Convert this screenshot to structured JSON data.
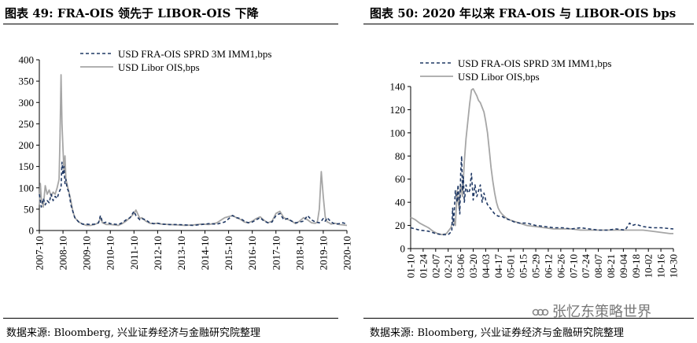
{
  "left": {
    "title": "图表 49:  FRA-OIS 领先于 LIBOR-OIS 下降",
    "source": "数据来源:  Bloomberg,  兴业证券经济与金融研究院整理"
  },
  "right": {
    "title": "图表 50: 2020 年以来 FRA-OIS 与 LIBOR-OIS bps",
    "source": "数据来源:  Bloomberg,  兴业证券经济与金融研究院整理"
  },
  "watermark": "张忆东策略世界",
  "colors": {
    "fra": "#1f3864",
    "libor": "#a6a6a6"
  },
  "chart_data": [
    {
      "type": "line",
      "title": "FRA-OIS 领先于 LIBOR-OIS 下降",
      "x_unit": "month index since 2007-10",
      "xlim": [
        0,
        156
      ],
      "ylim": [
        0,
        400
      ],
      "yticks": [
        0,
        50,
        100,
        150,
        200,
        250,
        300,
        350,
        400
      ],
      "xtick_labels": [
        "2007-10",
        "2008-10",
        "2009-10",
        "2010-10",
        "2011-10",
        "2012-10",
        "2013-10",
        "2014-10",
        "2015-10",
        "2016-10",
        "2017-10",
        "2018-10",
        "2019-10",
        "2020-10"
      ],
      "legend": [
        "USD FRA-OIS SPRD 3M IMM1,bps",
        "USD Libor OIS,bps"
      ],
      "series": [
        {
          "name": "USD FRA-OIS SPRD 3M IMM1,bps",
          "style": "dashed",
          "x": [
            0,
            1,
            2,
            3,
            4,
            5,
            6,
            7,
            8,
            9,
            10,
            11,
            11.5,
            12,
            12.5,
            13,
            13.5,
            14,
            15,
            16,
            17,
            18,
            20,
            22,
            24,
            26,
            28,
            30,
            31,
            32,
            33,
            34,
            36,
            38,
            40,
            42,
            44,
            46,
            48,
            49,
            50,
            51,
            52,
            54,
            56,
            58,
            60,
            62,
            66,
            70,
            74,
            78,
            82,
            86,
            90,
            94,
            98,
            100,
            102,
            104,
            106,
            108,
            110,
            112,
            114,
            116,
            118,
            120,
            122,
            124,
            126,
            128,
            130,
            132,
            134,
            136,
            138,
            140,
            142,
            143,
            144,
            145,
            146,
            148,
            150,
            152,
            154,
            156
          ],
          "y": [
            85,
            55,
            75,
            60,
            70,
            65,
            85,
            70,
            80,
            75,
            90,
            100,
            160,
            130,
            150,
            110,
            120,
            100,
            90,
            60,
            45,
            30,
            20,
            15,
            15,
            14,
            15,
            18,
            35,
            20,
            18,
            20,
            16,
            15,
            14,
            18,
            25,
            30,
            45,
            35,
            30,
            25,
            28,
            25,
            18,
            16,
            17,
            15,
            14,
            14,
            13,
            12,
            14,
            16,
            15,
            20,
            35,
            30,
            28,
            22,
            18,
            20,
            25,
            30,
            22,
            18,
            20,
            35,
            40,
            25,
            28,
            22,
            18,
            20,
            22,
            35,
            25,
            20,
            18,
            22,
            28,
            22,
            30,
            20,
            15,
            16,
            18,
            15
          ]
        },
        {
          "name": "USD Libor OIS,bps",
          "style": "solid",
          "x": [
            0,
            0.5,
            1,
            2,
            3,
            4,
            5,
            6,
            7,
            8,
            9,
            10,
            10.5,
            11,
            11.5,
            12,
            12.5,
            13,
            13.5,
            14,
            14.5,
            15,
            16,
            17,
            18,
            20,
            22,
            24,
            26,
            28,
            30,
            31,
            32,
            34,
            36,
            38,
            40,
            42,
            44,
            46,
            48,
            49,
            50,
            51,
            52,
            54,
            56,
            58,
            60,
            62,
            66,
            70,
            74,
            78,
            82,
            86,
            90,
            94,
            98,
            100,
            102,
            104,
            106,
            108,
            110,
            112,
            114,
            116,
            118,
            120,
            122,
            124,
            126,
            128,
            130,
            132,
            134,
            136,
            138,
            140,
            141,
            142,
            143,
            144,
            145,
            146,
            147,
            148,
            150,
            152,
            154,
            156
          ],
          "y": [
            60,
            110,
            75,
            55,
            105,
            85,
            95,
            80,
            90,
            85,
            100,
            120,
            220,
            365,
            250,
            190,
            140,
            175,
            120,
            110,
            100,
            90,
            70,
            45,
            30,
            20,
            15,
            12,
            12,
            14,
            18,
            30,
            18,
            14,
            14,
            13,
            12,
            16,
            22,
            30,
            40,
            48,
            38,
            28,
            30,
            22,
            17,
            16,
            17,
            15,
            14,
            13,
            12,
            13,
            15,
            14,
            18,
            30,
            35,
            30,
            26,
            20,
            18,
            22,
            28,
            32,
            24,
            18,
            22,
            40,
            45,
            30,
            26,
            22,
            16,
            22,
            30,
            25,
            18,
            17,
            20,
            50,
            138,
            80,
            32,
            20,
            18,
            15,
            17,
            14,
            13,
            12
          ]
        }
      ]
    },
    {
      "type": "line",
      "title": "2020 年以来 FRA-OIS 与 LIBOR-OIS bps",
      "x_unit": "day of 2020",
      "xlim": [
        10,
        304
      ],
      "ylim": [
        0,
        140
      ],
      "yticks": [
        0,
        20,
        40,
        60,
        80,
        100,
        120,
        140
      ],
      "xtick_labels": [
        "01-10",
        "01-24",
        "02-07",
        "02-21",
        "03-06",
        "03-20",
        "04-03",
        "04-17",
        "05-01",
        "05-15",
        "05-29",
        "06-12",
        "06-26",
        "07-10",
        "07-24",
        "08-07",
        "08-21",
        "09-04",
        "09-18",
        "10-02",
        "10-16",
        "10-30"
      ],
      "legend": [
        "USD FRA-OIS SPRD 3M IMM1,bps",
        "USD Libor OIS,bps"
      ],
      "series": [
        {
          "name": "USD FRA-OIS SPRD 3M IMM1,bps",
          "style": "dashed",
          "x": [
            10,
            20,
            30,
            38,
            45,
            52,
            56,
            57,
            58,
            60,
            62,
            63,
            64,
            65,
            66,
            67,
            68,
            69,
            70,
            72,
            74,
            76,
            78,
            80,
            82,
            84,
            86,
            88,
            90,
            92,
            94,
            96,
            98,
            100,
            104,
            108,
            112,
            116,
            120,
            126,
            132,
            140,
            150,
            160,
            170,
            180,
            190,
            200,
            210,
            220,
            230,
            240,
            250,
            255,
            258,
            262,
            270,
            280,
            290,
            304
          ],
          "y": [
            18,
            16,
            15,
            13,
            12,
            12,
            15,
            35,
            20,
            50,
            40,
            55,
            45,
            30,
            65,
            80,
            50,
            62,
            40,
            55,
            48,
            50,
            65,
            42,
            55,
            45,
            50,
            55,
            40,
            48,
            42,
            38,
            36,
            34,
            30,
            28,
            28,
            26,
            25,
            23,
            22,
            22,
            20,
            19,
            18,
            18,
            17,
            18,
            17,
            16,
            16,
            17,
            16,
            22,
            20,
            21,
            19,
            18,
            18,
            17
          ]
        },
        {
          "name": "USD Libor OIS,bps",
          "style": "solid",
          "x": [
            10,
            15,
            20,
            25,
            30,
            35,
            40,
            45,
            50,
            55,
            58,
            60,
            62,
            64,
            66,
            68,
            70,
            72,
            74,
            76,
            78,
            80,
            82,
            84,
            86,
            88,
            90,
            92,
            94,
            96,
            98,
            100,
            102,
            104,
            106,
            108,
            110,
            112,
            116,
            120,
            124,
            128,
            132,
            136,
            140,
            150,
            160,
            170,
            180,
            190,
            200,
            210,
            220,
            230,
            240,
            250,
            260,
            270,
            280,
            290,
            300,
            304
          ],
          "y": [
            27,
            25,
            22,
            20,
            18,
            15,
            13,
            12,
            13,
            18,
            25,
            20,
            50,
            35,
            55,
            45,
            75,
            95,
            110,
            125,
            137,
            138,
            135,
            132,
            128,
            126,
            122,
            118,
            110,
            100,
            85,
            70,
            58,
            48,
            40,
            35,
            32,
            30,
            27,
            25,
            24,
            23,
            22,
            21,
            20,
            19,
            18,
            17,
            17,
            17,
            16,
            16,
            16,
            16,
            16,
            16,
            16,
            16,
            15,
            14,
            13,
            13
          ]
        }
      ]
    }
  ]
}
